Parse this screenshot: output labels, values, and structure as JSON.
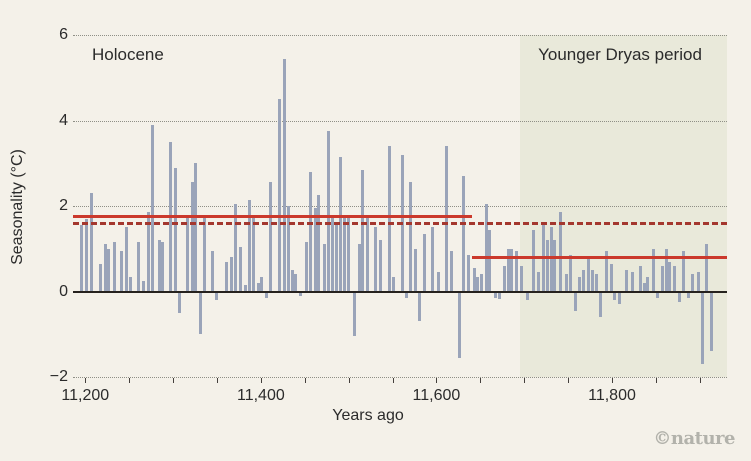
{
  "page": {
    "background": "#f4f1e9",
    "credit": "©nature"
  },
  "labels": {
    "holocene": "Holocene",
    "younger_dryas": "Younger Dryas period"
  },
  "chart_data": {
    "type": "bar",
    "title": "",
    "xlabel": "Years ago",
    "ylabel": "Seasonality (°C)",
    "x_domain": [
      11186,
      11931
    ],
    "ylim": [
      -2,
      6
    ],
    "y_ticks": [
      6,
      4,
      2,
      0,
      -2
    ],
    "y_tick_labels": [
      "6",
      "4",
      "2",
      "0",
      "−2"
    ],
    "y_gridlines": [
      6,
      4,
      2,
      -2
    ],
    "x_major_ticks": [
      11200,
      11400,
      11600,
      11800
    ],
    "x_major_tick_labels": [
      "11,200",
      "11,400",
      "11,600",
      "11,800"
    ],
    "x_minor_ticks": [
      11200,
      11250,
      11300,
      11350,
      11400,
      11450,
      11500,
      11550,
      11600,
      11650,
      11700,
      11750,
      11800,
      11850,
      11900
    ],
    "grid": "dotted-horizontal",
    "legend_position": "none",
    "bar_color": "#9aa4b9",
    "zero_line_color": "#26221e",
    "text_color": "#2b2b2b",
    "background_color": "#f4f1e9",
    "regions": [
      {
        "name": "younger-dryas-band",
        "label": "Younger Dryas period",
        "from": 11695,
        "to": 11931,
        "color": "#e9e9da"
      }
    ],
    "reference_lines": [
      {
        "name": "holocene-mean",
        "value": 1.75,
        "from": 11186,
        "to": 11640,
        "style": "solid",
        "color": "#cb392c"
      },
      {
        "name": "younger-dryas-mean",
        "value": 0.8,
        "from": 11640,
        "to": 11931,
        "style": "solid",
        "color": "#cb392c"
      },
      {
        "name": "overall-mean-dashed",
        "value": 1.6,
        "from": 11186,
        "to": 11931,
        "style": "dashed",
        "color": "#a4372e"
      }
    ],
    "series": [
      {
        "name": "Seasonality",
        "points": [
          [
            11196,
            1.55
          ],
          [
            11201,
            1.7
          ],
          [
            11207,
            2.3
          ],
          [
            11217,
            0.65
          ],
          [
            11223,
            1.1
          ],
          [
            11227,
            1.0
          ],
          [
            11233,
            1.15
          ],
          [
            11241,
            0.95
          ],
          [
            11247,
            1.5
          ],
          [
            11252,
            0.35
          ],
          [
            11261,
            1.15
          ],
          [
            11266,
            0.25
          ],
          [
            11272,
            1.85
          ],
          [
            11277,
            3.9
          ],
          [
            11284,
            1.2
          ],
          [
            11288,
            1.15
          ],
          [
            11297,
            3.5
          ],
          [
            11303,
            2.9
          ],
          [
            11307,
            -0.5
          ],
          [
            11317,
            1.8
          ],
          [
            11322,
            2.55
          ],
          [
            11326,
            3.0
          ],
          [
            11331,
            -1.0
          ],
          [
            11336,
            1.8
          ],
          [
            11345,
            0.95
          ],
          [
            11350,
            -0.2
          ],
          [
            11361,
            0.7
          ],
          [
            11366,
            0.8
          ],
          [
            11371,
            2.05
          ],
          [
            11377,
            1.05
          ],
          [
            11382,
            0.15
          ],
          [
            11387,
            2.15
          ],
          [
            11392,
            1.75
          ],
          [
            11397,
            0.2
          ],
          [
            11401,
            0.35
          ],
          [
            11406,
            -0.15
          ],
          [
            11411,
            2.55
          ],
          [
            11421,
            4.5
          ],
          [
            11427,
            5.45
          ],
          [
            11432,
            2.0
          ],
          [
            11436,
            0.5
          ],
          [
            11440,
            0.4
          ],
          [
            11445,
            -0.1
          ],
          [
            11452,
            1.15
          ],
          [
            11457,
            2.8
          ],
          [
            11462,
            1.95
          ],
          [
            11466,
            2.25
          ],
          [
            11472,
            1.1
          ],
          [
            11477,
            3.75
          ],
          [
            11482,
            1.75
          ],
          [
            11486,
            1.55
          ],
          [
            11491,
            3.15
          ],
          [
            11495,
            1.75
          ],
          [
            11500,
            1.8
          ],
          [
            11507,
            -1.05
          ],
          [
            11512,
            1.1
          ],
          [
            11516,
            2.85
          ],
          [
            11522,
            1.75
          ],
          [
            11531,
            1.5
          ],
          [
            11536,
            1.2
          ],
          [
            11546,
            3.4
          ],
          [
            11551,
            0.35
          ],
          [
            11561,
            3.2
          ],
          [
            11566,
            -0.15
          ],
          [
            11571,
            2.55
          ],
          [
            11576,
            1.0
          ],
          [
            11581,
            -0.7
          ],
          [
            11586,
            1.35
          ],
          [
            11596,
            1.5
          ],
          [
            11602,
            0.45
          ],
          [
            11611,
            3.4
          ],
          [
            11617,
            0.95
          ],
          [
            11626,
            -1.55
          ],
          [
            11631,
            2.7
          ],
          [
            11636,
            0.85
          ],
          [
            11643,
            0.55
          ],
          [
            11647,
            0.35
          ],
          [
            11651,
            0.4
          ],
          [
            11657,
            2.05
          ],
          [
            11661,
            1.45
          ],
          [
            11667,
            -0.15
          ],
          [
            11672,
            -0.18
          ],
          [
            11677,
            0.6
          ],
          [
            11682,
            1.0
          ],
          [
            11686,
            1.0
          ],
          [
            11691,
            0.95
          ],
          [
            11697,
            0.6
          ],
          [
            11704,
            -0.2
          ],
          [
            11711,
            1.45
          ],
          [
            11716,
            0.45
          ],
          [
            11722,
            1.6
          ],
          [
            11726,
            1.2
          ],
          [
            11731,
            1.5
          ],
          [
            11735,
            1.2
          ],
          [
            11741,
            1.85
          ],
          [
            11748,
            0.4
          ],
          [
            11753,
            0.85
          ],
          [
            11758,
            -0.45
          ],
          [
            11763,
            0.35
          ],
          [
            11768,
            0.5
          ],
          [
            11773,
            0.75
          ],
          [
            11778,
            0.5
          ],
          [
            11782,
            0.4
          ],
          [
            11787,
            -0.6
          ],
          [
            11794,
            0.95
          ],
          [
            11799,
            0.65
          ],
          [
            11803,
            -0.2
          ],
          [
            11809,
            -0.3
          ],
          [
            11817,
            0.5
          ],
          [
            11823,
            0.45
          ],
          [
            11832,
            0.6
          ],
          [
            11837,
            0.2
          ],
          [
            11841,
            0.35
          ],
          [
            11847,
            1.0
          ],
          [
            11852,
            -0.15
          ],
          [
            11857,
            0.6
          ],
          [
            11862,
            1.0
          ],
          [
            11866,
            0.7
          ],
          [
            11871,
            0.6
          ],
          [
            11877,
            -0.25
          ],
          [
            11882,
            0.95
          ],
          [
            11887,
            -0.15
          ],
          [
            11892,
            0.4
          ],
          [
            11898,
            0.45
          ],
          [
            11903,
            -1.7
          ],
          [
            11908,
            1.1
          ],
          [
            11913,
            -1.4
          ]
        ]
      }
    ]
  }
}
